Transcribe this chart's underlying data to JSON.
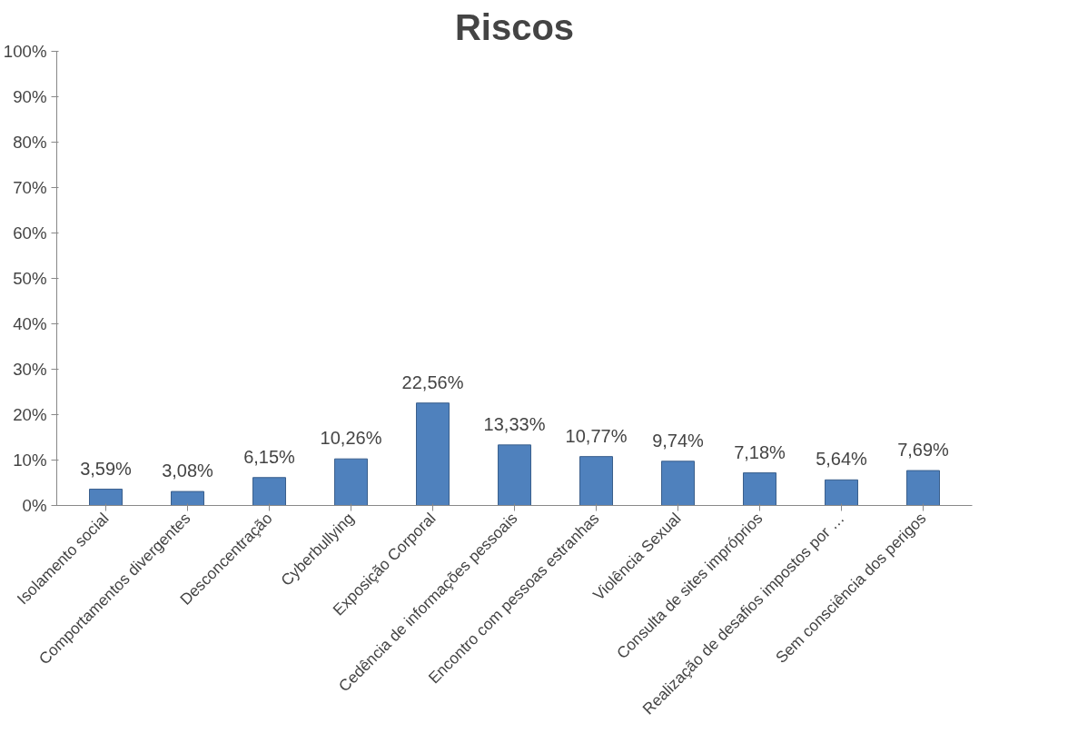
{
  "chart_data": {
    "type": "bar",
    "title": "Riscos",
    "categories": [
      "Isolamento social",
      "Comportamentos divergentes",
      "Desconcentração",
      "Cyberbullying",
      "Exposição Corporal",
      "Cedência de informações pessoais",
      "Encontro com pessoas estranhas",
      "Violência Sexual",
      "Consulta de sites impróprios",
      "Realização de desafios impostos por …",
      "Sem consciência dos perigos"
    ],
    "values": [
      3.59,
      3.08,
      6.15,
      10.26,
      22.56,
      13.33,
      10.77,
      9.74,
      7.18,
      5.64,
      7.69
    ],
    "value_labels": [
      "3,59%",
      "3,08%",
      "6,15%",
      "10,26%",
      "22,56%",
      "13,33%",
      "10,77%",
      "9,74%",
      "7,18%",
      "5,64%",
      "7,69%"
    ],
    "color": "#4f81bd",
    "ylim": [
      0,
      100
    ],
    "yticks": [
      {
        "value": 0,
        "label": "0%"
      },
      {
        "value": 10,
        "label": "10%"
      },
      {
        "value": 20,
        "label": "20%"
      },
      {
        "value": 30,
        "label": "30%"
      },
      {
        "value": 40,
        "label": "40%"
      },
      {
        "value": 50,
        "label": "50%"
      },
      {
        "value": 60,
        "label": "60%"
      },
      {
        "value": 70,
        "label": "70%"
      },
      {
        "value": 80,
        "label": "80%"
      },
      {
        "value": 90,
        "label": "90%"
      },
      {
        "value": 100,
        "label": "100%"
      }
    ],
    "grid": false
  }
}
